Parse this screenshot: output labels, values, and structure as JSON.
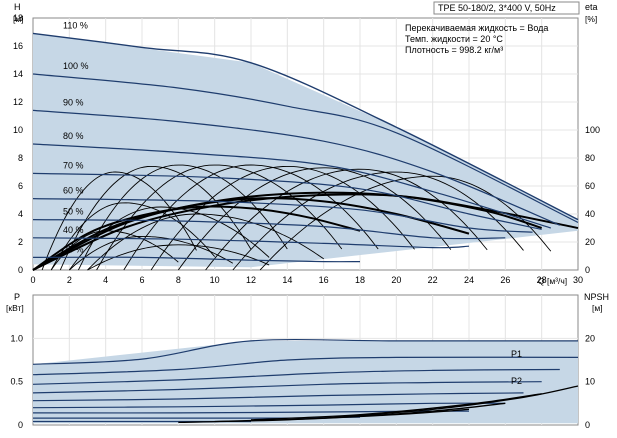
{
  "chart_data": [
    {
      "type": "line",
      "pump_title": "TPE 50-180/2, 3*400 V, 50Hz",
      "fluid_info": [
        "Перекачиваемая жидкость = Вода",
        "Темп. жидкости = 20 °C",
        "Плотность = 998.2 кг/м³"
      ],
      "y_axis_label": "H",
      "y_axis_unit": "[м]",
      "y_right_label": "eta",
      "y_right_unit": "[%]",
      "x_axis_label": "Q [м³/ч]",
      "xlim": [
        0,
        30
      ],
      "ylim": [
        0,
        18
      ],
      "x_ticks": [
        0,
        2,
        4,
        6,
        8,
        10,
        12,
        14,
        16,
        18,
        20,
        22,
        24,
        26,
        28,
        30
      ],
      "y_ticks": [
        0,
        2,
        4,
        6,
        8,
        10,
        12,
        14,
        16,
        18
      ],
      "eta_ticks": [
        0,
        20,
        40,
        60,
        80,
        100
      ],
      "eta_scale": {
        "h_at_zero": 0,
        "h_at_100": 10
      },
      "operating_area_color": "#c6d7e6",
      "curve_color": "#1f3d6e",
      "eff_curve_color": "#000000",
      "max_speed_envelope": [
        [
          0,
          16.9
        ],
        [
          12,
          14.8
        ],
        [
          20,
          10.2
        ],
        [
          30,
          3.6
        ]
      ],
      "min_flow_edge": [
        [
          0,
          0.4
        ],
        [
          12,
          0.2
        ]
      ],
      "right_edge": [
        [
          30,
          3.6
        ],
        [
          30,
          2.8
        ]
      ],
      "bottom_edge": [
        [
          12,
          0.2
        ],
        [
          30,
          2.8
        ]
      ],
      "series": [
        {
          "name": "110 %",
          "points": [
            [
              0,
              16.9
            ],
            [
              6,
              15.9
            ],
            [
              12,
              14.8
            ],
            [
              20,
              10.2
            ],
            [
              30,
              3.6
            ]
          ]
        },
        {
          "name": "100 %",
          "points": [
            [
              0,
              14.0
            ],
            [
              8,
              13.0
            ],
            [
              14,
              11.7
            ],
            [
              20,
              9.8
            ],
            [
              30,
              3.4
            ]
          ]
        },
        {
          "name": "90 %",
          "points": [
            [
              0,
              11.4
            ],
            [
              8,
              10.6
            ],
            [
              16,
              9.2
            ],
            [
              22,
              7.0
            ],
            [
              29,
              3.2
            ]
          ]
        },
        {
          "name": "80 %",
          "points": [
            [
              0,
              9.0
            ],
            [
              8,
              8.4
            ],
            [
              16,
              7.5
            ],
            [
              22,
              5.6
            ],
            [
              28.5,
              3.0
            ]
          ]
        },
        {
          "name": "70 %",
          "points": [
            [
              0,
              6.9
            ],
            [
              10,
              6.6
            ],
            [
              18,
              5.8
            ],
            [
              24,
              4.0
            ],
            [
              28,
              2.9
            ]
          ]
        },
        {
          "name": "60 %",
          "points": [
            [
              0,
              5.1
            ],
            [
              10,
              4.9
            ],
            [
              18,
              4.3
            ],
            [
              24,
              3.0
            ],
            [
              27.5,
              2.7
            ]
          ]
        },
        {
          "name": "50 %",
          "points": [
            [
              0,
              3.6
            ],
            [
              8,
              3.5
            ],
            [
              16,
              3.1
            ],
            [
              22,
              2.3
            ],
            [
              26,
              2.3
            ]
          ]
        },
        {
          "name": "40 %",
          "points": [
            [
              0,
              2.3
            ],
            [
              8,
              2.2
            ],
            [
              16,
              1.9
            ],
            [
              22,
              1.6
            ],
            [
              24,
              1.7
            ]
          ]
        },
        {
          "name": "25 %",
          "points": [
            [
              0,
              0.9
            ],
            [
              6,
              0.9
            ],
            [
              12,
              0.7
            ],
            [
              16,
              0.6
            ],
            [
              18,
              0.6
            ]
          ]
        }
      ],
      "efficiency_curves": [
        [
          [
            0,
            0.0
          ],
          [
            3,
            2.6
          ],
          [
            6,
            3.9
          ],
          [
            9,
            4.5
          ],
          [
            12,
            4.4
          ],
          [
            15,
            3.8
          ],
          [
            18,
            2.8
          ]
        ],
        [
          [
            0,
            0.0
          ],
          [
            4,
            2.9
          ],
          [
            8,
            4.4
          ],
          [
            12,
            5.1
          ],
          [
            16,
            4.9
          ],
          [
            20,
            4.0
          ],
          [
            24,
            2.6
          ]
        ],
        [
          [
            0,
            0.0
          ],
          [
            5,
            3.3
          ],
          [
            10,
            4.9
          ],
          [
            15,
            5.5
          ],
          [
            20,
            5.3
          ],
          [
            25,
            4.2
          ],
          [
            28,
            3.0
          ]
        ],
        [
          [
            0,
            0.0
          ],
          [
            5,
            3.0
          ],
          [
            10,
            4.6
          ],
          [
            15,
            5.3
          ],
          [
            20,
            5.3
          ],
          [
            25,
            4.3
          ],
          [
            30,
            3.0
          ]
        ]
      ],
      "efficiency_arcs": [
        {
          "start": 0.5,
          "peak_x": 4.5,
          "peak_eta": 70,
          "end": 9
        },
        {
          "start": 1.5,
          "peak_x": 6.5,
          "peak_eta": 74,
          "end": 12
        },
        {
          "start": 2.5,
          "peak_x": 8.0,
          "peak_eta": 75,
          "end": 14
        },
        {
          "start": 3.5,
          "peak_x": 10.0,
          "peak_eta": 75,
          "end": 17
        },
        {
          "start": 5.0,
          "peak_x": 12.0,
          "peak_eta": 75,
          "end": 19
        },
        {
          "start": 6.5,
          "peak_x": 14.0,
          "peak_eta": 74,
          "end": 21
        },
        {
          "start": 8.0,
          "peak_x": 16.0,
          "peak_eta": 73,
          "end": 23
        },
        {
          "start": 9.5,
          "peak_x": 18.0,
          "peak_eta": 72,
          "end": 25
        },
        {
          "start": 11.0,
          "peak_x": 20.0,
          "peak_eta": 70,
          "end": 27
        },
        {
          "start": 12.5,
          "peak_x": 22.0,
          "peak_eta": 67,
          "end": 28.5
        },
        {
          "start": 1.0,
          "peak_x": 5.0,
          "peak_eta": 48,
          "end": 10
        },
        {
          "start": 2.0,
          "peak_x": 7.0,
          "peak_eta": 45,
          "end": 13
        },
        {
          "start": 3.0,
          "peak_x": 9.0,
          "peak_eta": 40,
          "end": 16
        },
        {
          "start": 1.0,
          "peak_x": 4.0,
          "peak_eta": 28,
          "end": 8
        },
        {
          "start": 2.0,
          "peak_x": 6.0,
          "peak_eta": 24,
          "end": 11
        },
        {
          "start": 3.0,
          "peak_x": 8.0,
          "peak_eta": 18,
          "end": 13
        }
      ]
    },
    {
      "type": "line",
      "y_axis_label": "P",
      "y_axis_unit": "[кВт]",
      "y_right_label": "NPSH",
      "y_right_unit": "[м]",
      "xlim": [
        0,
        30
      ],
      "ylim": [
        0,
        1.5
      ],
      "y_ticks": [
        0,
        0.5,
        1.0
      ],
      "y_tick_labels": [
        "0",
        "0.5",
        "1.0"
      ],
      "npsh_ticks": [
        0,
        10,
        20
      ],
      "npsh_scale": {
        "p_at_zero": 0,
        "p_at_20": 1.0
      },
      "series_labels": [
        "P1",
        "P2"
      ],
      "area_top": [
        [
          0,
          0.7
        ],
        [
          12,
          0.97
        ],
        [
          20,
          0.97
        ],
        [
          30,
          0.97
        ]
      ],
      "area_bottom": [
        [
          0,
          0.02
        ],
        [
          30,
          0.02
        ]
      ],
      "power_curves": [
        [
          [
            0,
            0.7
          ],
          [
            6,
            0.76
          ],
          [
            12,
            0.97
          ],
          [
            20,
            0.97
          ],
          [
            30,
            0.97
          ]
        ],
        [
          [
            0,
            0.58
          ],
          [
            8,
            0.64
          ],
          [
            14,
            0.75
          ],
          [
            20,
            0.78
          ],
          [
            30,
            0.78
          ]
        ],
        [
          [
            0,
            0.47
          ],
          [
            8,
            0.52
          ],
          [
            16,
            0.6
          ],
          [
            22,
            0.63
          ],
          [
            29,
            0.64
          ]
        ],
        [
          [
            0,
            0.37
          ],
          [
            8,
            0.41
          ],
          [
            16,
            0.47
          ],
          [
            22,
            0.49
          ],
          [
            28,
            0.5
          ]
        ],
        [
          [
            0,
            0.28
          ],
          [
            8,
            0.3
          ],
          [
            16,
            0.34
          ],
          [
            22,
            0.36
          ],
          [
            27,
            0.37
          ]
        ],
        [
          [
            0,
            0.2
          ],
          [
            8,
            0.21
          ],
          [
            16,
            0.23
          ],
          [
            22,
            0.25
          ],
          [
            26,
            0.25
          ]
        ],
        [
          [
            0,
            0.14
          ],
          [
            8,
            0.14
          ],
          [
            16,
            0.15
          ],
          [
            22,
            0.16
          ],
          [
            24,
            0.16
          ]
        ],
        [
          [
            0,
            0.08
          ],
          [
            8,
            0.08
          ],
          [
            14,
            0.08
          ],
          [
            18,
            0.09
          ]
        ],
        [
          [
            0,
            0.04
          ],
          [
            6,
            0.04
          ],
          [
            12,
            0.04
          ]
        ]
      ],
      "npsh_curves": [
        [
          [
            16,
            0.08
          ],
          [
            22,
            0.18
          ],
          [
            27,
            0.32
          ],
          [
            30,
            0.45
          ]
        ],
        [
          [
            12,
            0.06
          ],
          [
            18,
            0.12
          ],
          [
            24,
            0.24
          ],
          [
            28,
            0.36
          ]
        ],
        [
          [
            10,
            0.04
          ],
          [
            16,
            0.08
          ],
          [
            22,
            0.16
          ],
          [
            26,
            0.25
          ]
        ],
        [
          [
            8,
            0.03
          ],
          [
            14,
            0.06
          ],
          [
            20,
            0.12
          ],
          [
            24,
            0.18
          ]
        ]
      ]
    }
  ]
}
